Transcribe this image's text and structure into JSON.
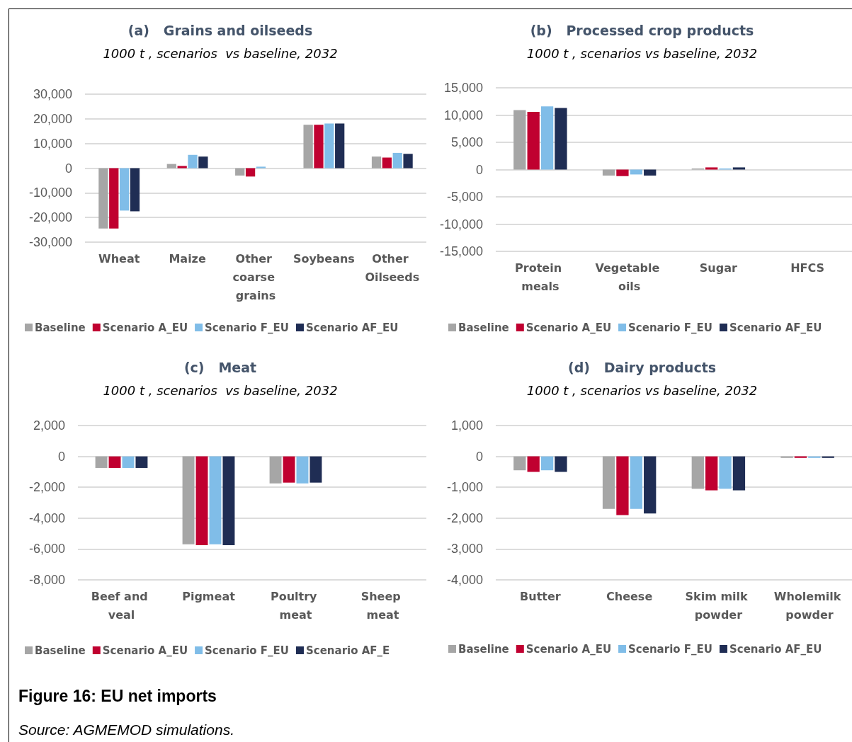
{
  "chart_data": [
    {
      "type": "bar",
      "title": "(a)   Grains and oilseeds",
      "subtitle": "1000 t , scenarios  vs baseline, 2032",
      "categories": [
        "Wheat",
        "Maize",
        "Other coarse grains",
        "Soybeans",
        "Other Oilseeds"
      ],
      "series": [
        {
          "name": "Baseline",
          "color": "#a6a6a6",
          "values": [
            -24500,
            1700,
            -3000,
            17600,
            4700
          ]
        },
        {
          "name": "Scenario A_EU",
          "color": "#c00030",
          "values": [
            -24500,
            900,
            -3400,
            17600,
            4300
          ]
        },
        {
          "name": "Scenario F_EU",
          "color": "#80bde8",
          "values": [
            -17200,
            5400,
            600,
            18100,
            6200
          ]
        },
        {
          "name": "Scenario AF_EU",
          "color": "#1f2d54",
          "values": [
            -17500,
            4700,
            0,
            18100,
            5800
          ]
        }
      ],
      "ylim": [
        -30000,
        30000
      ],
      "yticks": [
        {
          "value": -30000,
          "label": "-30,000"
        },
        {
          "value": -20000,
          "label": "-20,000"
        },
        {
          "value": -10000,
          "label": "-10,000"
        },
        {
          "value": 0,
          "label": "0"
        },
        {
          "value": 10000,
          "label": "10,000"
        },
        {
          "value": 20000,
          "label": "20,000"
        },
        {
          "value": 30000,
          "label": "30,000"
        }
      ],
      "grid": "y",
      "legend": "bottom"
    },
    {
      "type": "bar",
      "title": "(b)   Processed crop products",
      "subtitle": "1000 t , scenarios vs baseline, 2032",
      "categories": [
        "Protein meals",
        "Vegetable oils",
        "Sugar",
        "HFCS"
      ],
      "series": [
        {
          "name": "Baseline",
          "color": "#a6a6a6",
          "values": [
            10900,
            -1100,
            200,
            0
          ]
        },
        {
          "name": "Scenario A_EU",
          "color": "#c00030",
          "values": [
            10600,
            -1200,
            400,
            0
          ]
        },
        {
          "name": "Scenario F_EU",
          "color": "#80bde8",
          "values": [
            11600,
            -900,
            200,
            0
          ]
        },
        {
          "name": "Scenario AF_EU",
          "color": "#1f2d54",
          "values": [
            11300,
            -1100,
            400,
            0
          ]
        }
      ],
      "ylim": [
        -15000,
        15000
      ],
      "yticks": [
        {
          "value": -15000,
          "label": "-15,000"
        },
        {
          "value": -10000,
          "label": "-10,000"
        },
        {
          "value": -5000,
          "label": "-5,000"
        },
        {
          "value": 0,
          "label": "0"
        },
        {
          "value": 5000,
          "label": "5,000"
        },
        {
          "value": 10000,
          "label": "10,000"
        },
        {
          "value": 15000,
          "label": "15,000"
        }
      ],
      "grid": "y",
      "legend": "bottom"
    },
    {
      "type": "bar",
      "title": "(c)   Meat",
      "subtitle": "1000 t , scenarios  vs baseline, 2032",
      "categories": [
        "Beef and veal",
        "Pigmeat",
        "Poultry meat",
        "Sheep meat"
      ],
      "series": [
        {
          "name": "Baseline",
          "color": "#a6a6a6",
          "values": [
            -750,
            -5700,
            -1750,
            0
          ]
        },
        {
          "name": "Scenario A_EU",
          "color": "#c00030",
          "values": [
            -750,
            -5750,
            -1700,
            0
          ]
        },
        {
          "name": "Scenario F_EU",
          "color": "#80bde8",
          "values": [
            -750,
            -5700,
            -1750,
            0
          ]
        },
        {
          "name": "Scenario AF_E",
          "color": "#1f2d54",
          "values": [
            -750,
            -5750,
            -1700,
            0
          ]
        }
      ],
      "ylim": [
        -8000,
        2000
      ],
      "yticks": [
        {
          "value": -8000,
          "label": "-8,000"
        },
        {
          "value": -6000,
          "label": "-6,000"
        },
        {
          "value": -4000,
          "label": "-4,000"
        },
        {
          "value": -2000,
          "label": "-2,000"
        },
        {
          "value": 0,
          "label": "0"
        },
        {
          "value": 2000,
          "label": "2,000"
        }
      ],
      "grid": "y",
      "legend": "bottom"
    },
    {
      "type": "bar",
      "title": "(d)   Dairy products",
      "subtitle": "1000 t , scenarios vs baseline, 2032",
      "categories": [
        "Butter",
        "Cheese",
        "Skim milk powder",
        "Wholemilk powder"
      ],
      "series": [
        {
          "name": "Baseline",
          "color": "#a6a6a6",
          "values": [
            -450,
            -1700,
            -1050,
            -50
          ]
        },
        {
          "name": "Scenario A_EU",
          "color": "#c00030",
          "values": [
            -500,
            -1900,
            -1100,
            -50
          ]
        },
        {
          "name": "Scenario F_EU",
          "color": "#80bde8",
          "values": [
            -450,
            -1700,
            -1050,
            -50
          ]
        },
        {
          "name": "Scenario AF_EU",
          "color": "#1f2d54",
          "values": [
            -500,
            -1850,
            -1100,
            -50
          ]
        }
      ],
      "ylim": [
        -4000,
        1000
      ],
      "yticks": [
        {
          "value": -4000,
          "label": "-4,000"
        },
        {
          "value": -3000,
          "label": "-3,000"
        },
        {
          "value": -2000,
          "label": "-2,000"
        },
        {
          "value": -1000,
          "label": "-1,000"
        },
        {
          "value": 0,
          "label": "0"
        },
        {
          "value": 1000,
          "label": "1,000"
        }
      ],
      "grid": "y",
      "legend": "bottom",
      "annotations": [
        "Figure 16: EU net imports",
        "Source: AGMEMOD simulations."
      ]
    }
  ]
}
